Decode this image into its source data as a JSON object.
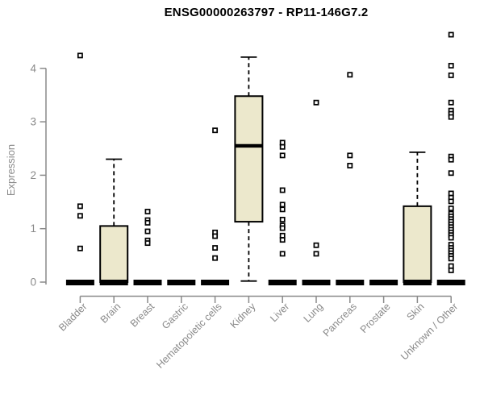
{
  "chart_data": {
    "type": "boxplot",
    "title": "ENSG00000263797 - RP11-146G7.2",
    "ylabel": "Expression",
    "xlabel": "",
    "yticks": [
      0,
      1,
      2,
      3,
      4
    ],
    "ylim": [
      -0.1,
      4.7
    ],
    "grid": false,
    "legend": "none",
    "colors": {
      "box_fill": "#ECE8CC",
      "box_stroke": "#000000",
      "axis": "#8a8a8a",
      "tick_label": "#8a8a8a",
      "title": "#000000",
      "outlier_fill": "#ffffff",
      "outlier_stroke": "#000000"
    },
    "categories": [
      "Bladder",
      "Brain",
      "Breast",
      "Gastric",
      "Hematopoietic cells",
      "Kidney",
      "Liver",
      "Lung",
      "Pancreas",
      "Prostate",
      "Skin",
      "Unknown / Other"
    ],
    "boxes": [
      {
        "category": "Bladder",
        "q1": 0,
        "median": 0,
        "q3": 0,
        "whisker_low": 0,
        "whisker_high": 0,
        "outliers": [
          4.24,
          1.42,
          1.24,
          0.63
        ]
      },
      {
        "category": "Brain",
        "q1": 0,
        "median": 0,
        "q3": 1.05,
        "whisker_low": 0,
        "whisker_high": 2.3,
        "outliers": []
      },
      {
        "category": "Breast",
        "q1": 0,
        "median": 0,
        "q3": 0,
        "whisker_low": 0,
        "whisker_high": 0,
        "outliers": [
          1.32,
          1.16,
          1.11,
          0.95,
          0.78,
          0.73
        ]
      },
      {
        "category": "Gastric",
        "q1": 0,
        "median": 0,
        "q3": 0,
        "whisker_low": 0,
        "whisker_high": 0,
        "outliers": []
      },
      {
        "category": "Hematopoietic cells",
        "q1": 0,
        "median": 0,
        "q3": 0,
        "whisker_low": 0,
        "whisker_high": 0,
        "outliers": [
          2.84,
          0.93,
          0.86,
          0.64,
          0.45
        ]
      },
      {
        "category": "Kidney",
        "q1": 1.13,
        "median": 2.55,
        "q3": 3.48,
        "whisker_low": 0.02,
        "whisker_high": 4.21,
        "outliers": []
      },
      {
        "category": "Liver",
        "q1": 0,
        "median": 0,
        "q3": 0,
        "whisker_low": 0,
        "whisker_high": 0,
        "outliers": [
          2.61,
          2.53,
          2.37,
          1.72,
          1.45,
          1.36,
          1.17,
          1.06,
          1.01,
          0.87,
          0.79,
          0.53
        ]
      },
      {
        "category": "Lung",
        "q1": 0,
        "median": 0,
        "q3": 0,
        "whisker_low": 0,
        "whisker_high": 0,
        "outliers": [
          3.36,
          0.69,
          0.53
        ]
      },
      {
        "category": "Pancreas",
        "q1": 0,
        "median": 0,
        "q3": 0,
        "whisker_low": 0,
        "whisker_high": 0,
        "outliers": [
          3.88,
          2.37,
          2.18
        ]
      },
      {
        "category": "Prostate",
        "q1": 0,
        "median": 0,
        "q3": 0,
        "whisker_low": 0,
        "whisker_high": 0,
        "outliers": []
      },
      {
        "category": "Skin",
        "q1": 0,
        "median": 0,
        "q3": 1.42,
        "whisker_low": 0,
        "whisker_high": 2.43,
        "outliers": []
      },
      {
        "category": "Unknown / Other",
        "q1": 0,
        "median": 0,
        "q3": 0,
        "whisker_low": 0,
        "whisker_high": 0,
        "outliers": [
          4.63,
          4.05,
          3.87,
          3.36,
          3.21,
          3.15,
          3.09,
          2.35,
          2.29,
          2.04,
          1.66,
          1.58,
          1.51,
          1.38,
          1.28,
          1.23,
          1.18,
          1.13,
          1.08,
          1.03,
          0.98,
          0.93,
          0.88,
          0.83,
          0.7,
          0.64,
          0.59,
          0.54,
          0.49,
          0.44,
          0.3,
          0.22
        ]
      }
    ]
  }
}
